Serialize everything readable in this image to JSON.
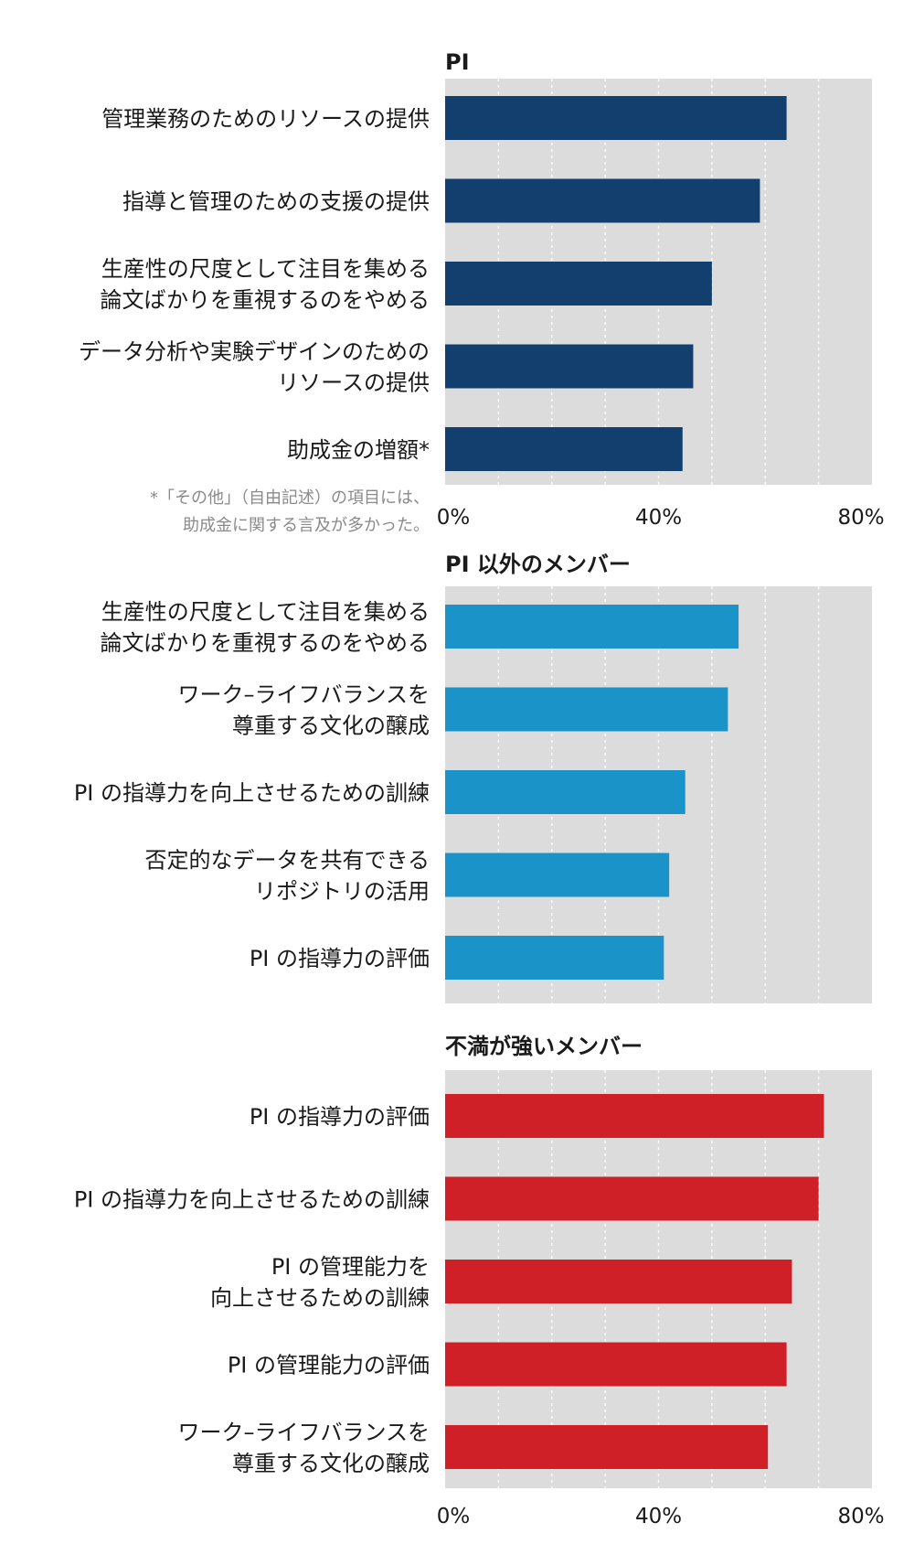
{
  "chart_data": [
    {
      "type": "bar",
      "orientation": "horizontal",
      "title": "PI",
      "color": "#123f6e",
      "categories": [
        [
          "管理業務のためのリソースの提供"
        ],
        [
          "指導と管理のための支援の提供"
        ],
        [
          "生産性の尺度として注目を集める",
          "論文ばかりを重視するのをやめる"
        ],
        [
          "データ分析や実験デザインのための",
          "リソースの提供"
        ],
        [
          "助成金の増額*"
        ]
      ],
      "values": [
        64,
        59,
        50,
        46.5,
        44.5
      ],
      "xlim": [
        0,
        80
      ],
      "xticks": [
        "0%",
        "40%",
        "80%"
      ],
      "grid": true,
      "footnote": [
        "*「その他」（自由記述）の項目には、",
        "助成金に関する言及が多かった。"
      ]
    },
    {
      "type": "bar",
      "orientation": "horizontal",
      "title": "PI 以外のメンバー",
      "color": "#1a93c8",
      "categories": [
        [
          "生産性の尺度として注目を集める",
          "論文ばかりを重視するのをやめる"
        ],
        [
          "ワーク–ライフバランスを",
          "尊重する文化の醸成"
        ],
        [
          "PI の指導力を向上させるための訓練"
        ],
        [
          "否定的なデータを共有できる",
          "リポジトリの活用"
        ],
        [
          "PI の指導力の評価"
        ]
      ],
      "values": [
        55,
        53,
        45,
        42,
        41
      ],
      "xlim": [
        0,
        80
      ],
      "grid": true
    },
    {
      "type": "bar",
      "orientation": "horizontal",
      "title": "不満が強いメンバー",
      "color": "#d02027",
      "categories": [
        [
          "PI の指導力の評価"
        ],
        [
          "PI の指導力を向上させるための訓練"
        ],
        [
          "PI の管理能力を",
          "向上させるための訓練"
        ],
        [
          "PI の管理能力の評価"
        ],
        [
          "ワーク–ライフバランスを",
          "尊重する文化の醸成"
        ]
      ],
      "values": [
        71,
        70,
        65,
        64,
        60.5
      ],
      "xlim": [
        0,
        80
      ],
      "xticks": [
        "0%",
        "40%",
        "80%"
      ],
      "grid": true
    }
  ]
}
